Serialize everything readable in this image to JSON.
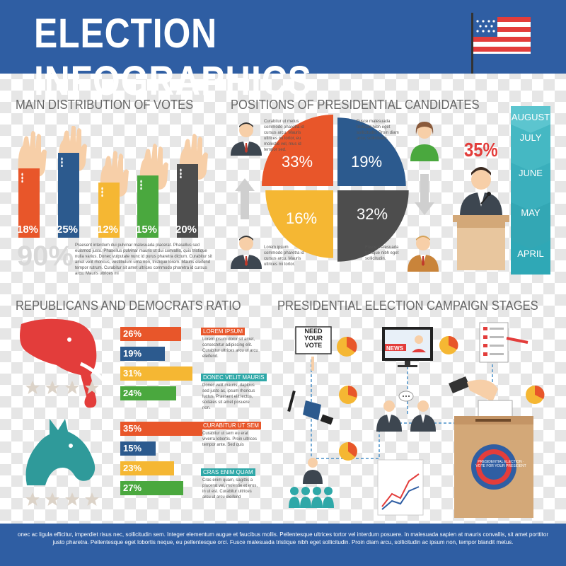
{
  "header": {
    "title": "ELECTION INFOGRAPHICS"
  },
  "colors": {
    "blue": "#2f5ea3",
    "orange": "#e8562a",
    "navy": "#2c5a8e",
    "yellow": "#f5b733",
    "green": "#4aa83e",
    "gray": "#4d4d4d",
    "red": "#e33d3b",
    "teal": "#2fa8a8"
  },
  "sections": {
    "votes": "MAIN DISTRIBUTION OF VOTES",
    "positions": "POSITIONS OF PRESIDENTIAL CANDIDATES",
    "ratio": "REPUBLICANS AND DEMOCRATS RATIO",
    "stages": "PRESIDENTIAL ELECTION CAMPAIGN STAGES"
  },
  "votes": {
    "bars": [
      {
        "label": "18%",
        "value": 18
      },
      {
        "label": "25%",
        "value": 25
      },
      {
        "label": "12%",
        "value": 12
      },
      {
        "label": "15%",
        "value": 15
      },
      {
        "label": "20%",
        "value": 20
      }
    ],
    "total": "90%",
    "text": "Praesent interdum dui pulvinar malesuada placerat. Phasellus sed euismod justo. Phasellus pulvinar mauris ut dui convallis, quis tristique nulla varius. Donec vulputate nunc id purus pharetra dictum. Curabitur sit amet velit rhoncus, vestibulum urna non, tristique lorem. Mauris eleifend tempor rutrum. Curabitur sit amet ultrices commodo pharetra id cursus arcu. Mauris ultrices mi"
  },
  "pie": {
    "slices": [
      {
        "label": "33%",
        "value": 33
      },
      {
        "label": "19%",
        "value": 19
      },
      {
        "label": "32%",
        "value": 32
      },
      {
        "label": "16%",
        "value": 16
      }
    ],
    "highlight": "35%",
    "text_a": "Curabitur ut metus commodo pharetra id cursus arcu. Mauris ultrices mi tortor, eu molestie vel, mus id tempor sed.",
    "text_b": "Fusce malesuada tristique nibh eget sollicitudin. Proin diam arcu, sollicitudin.",
    "text_c": "Lorem ipsum commodo pharetra id cursus arcu. Mauris ultrices mi tortor.",
    "text_d": "Fusce malesuada tristique nibh eget sollicitudin."
  },
  "timeline": {
    "months": [
      "AUGUST",
      "JULY",
      "JUNE",
      "MAY",
      "APRIL"
    ]
  },
  "ratio": {
    "bars": [
      {
        "label": "26%",
        "value": 26
      },
      {
        "label": "19%",
        "value": 19
      },
      {
        "label": "31%",
        "value": 31
      },
      {
        "label": "24%",
        "value": 24
      },
      {
        "label": "35%",
        "value": 35
      },
      {
        "label": "15%",
        "value": 15
      },
      {
        "label": "23%",
        "value": 23
      },
      {
        "label": "27%",
        "value": 27
      }
    ],
    "tags": [
      {
        "title": "LOREM IPSUM",
        "text": "Lorem ipsum dolor sit amet, consectetur adipiscing elit. Curabitur ultrices arcu ut arcu eleifend."
      },
      {
        "title": "DONEC VELIT MAURIS",
        "text": "Donec velit mauris, dapibus sed justo ac, ipsum rhoncus luctus. Praesent elit lectus, sodales sit amet posuere non."
      },
      {
        "title": "CURABITUR UT SEM",
        "text": "Curabitur ut sem eu erat viverra lobortis. Proin ultrices tempor ante. Sed quis"
      },
      {
        "title": "CRAS ENIM QUAM",
        "text": "Cras enim quam, sagittis a placerat vel, molestie et eros, in ut est. Curabitur ultrices arcu ut arcu eleifend"
      }
    ]
  },
  "stages": {
    "sign": "NEED YOUR VOTE",
    "news": "NEWS",
    "seal": "PRESIDENTIAL ELECTION · VOTE FOR YOUR PRESIDENT"
  },
  "footer": {
    "text": "onec ac ligula efficitur, imperdiet risus nec, sollicitudin sem. Integer elementum augue et faucibus mollis. Pellentesque ultrices tortor vel interdum posuere. In malesuada sapien at mauris convallis, sit amet porttitor justo pharetra. Pellentesque eget lobortis neque, eu pellentesque orci. Fusce malesuada tristique nibh eget sollicitudin. Proin diam arcu, sollicitudin ac ipsum non, tempor blandit metus."
  }
}
